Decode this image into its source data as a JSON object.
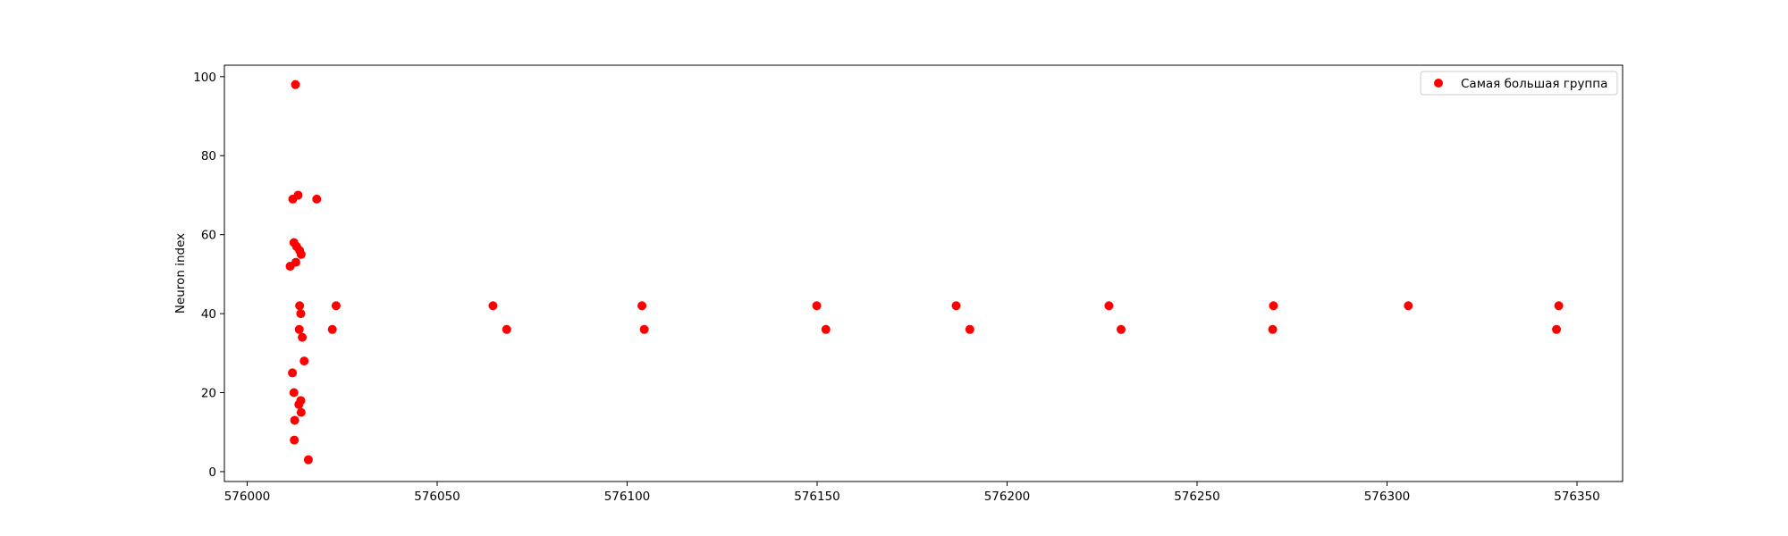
{
  "chart_data": {
    "type": "scatter",
    "title": "",
    "xlabel": "",
    "ylabel": "Neuron index",
    "xlim": [
      575994,
      576362
    ],
    "ylim": [
      -2.5,
      102.9
    ],
    "xticks": [
      576000,
      576050,
      576100,
      576150,
      576200,
      576250,
      576300,
      576350
    ],
    "yticks": [
      0,
      20,
      40,
      60,
      80,
      100
    ],
    "grid": false,
    "legend_position": "top-right",
    "series": [
      {
        "name": "Самая большая группа",
        "color": "#ff0000",
        "points": [
          [
            576012.7,
            98
          ],
          [
            576013.4,
            70
          ],
          [
            576012.0,
            69
          ],
          [
            576018.3,
            69
          ],
          [
            576012.3,
            58
          ],
          [
            576013.0,
            57
          ],
          [
            576013.8,
            56
          ],
          [
            576014.2,
            55
          ],
          [
            576012.8,
            53
          ],
          [
            576011.3,
            52
          ],
          [
            576023.4,
            42
          ],
          [
            576013.8,
            42
          ],
          [
            576014.1,
            40
          ],
          [
            576013.7,
            36
          ],
          [
            576022.4,
            36
          ],
          [
            576014.5,
            34
          ],
          [
            576015.0,
            28
          ],
          [
            576011.9,
            25
          ],
          [
            576012.3,
            20
          ],
          [
            576014.1,
            18
          ],
          [
            576013.6,
            17
          ],
          [
            576014.2,
            15
          ],
          [
            576012.5,
            13
          ],
          [
            576012.4,
            8
          ],
          [
            576016.1,
            3
          ],
          [
            576064.7,
            42
          ],
          [
            576068.3,
            36
          ],
          [
            576103.9,
            42
          ],
          [
            576104.5,
            36
          ],
          [
            576149.9,
            42
          ],
          [
            576152.3,
            36
          ],
          [
            576186.6,
            42
          ],
          [
            576190.2,
            36
          ],
          [
            576226.8,
            42
          ],
          [
            576230.0,
            36
          ],
          [
            576270.1,
            42
          ],
          [
            576269.9,
            36
          ],
          [
            576305.6,
            42
          ],
          [
            576344.6,
            36
          ],
          [
            576345.2,
            42
          ]
        ]
      }
    ]
  }
}
